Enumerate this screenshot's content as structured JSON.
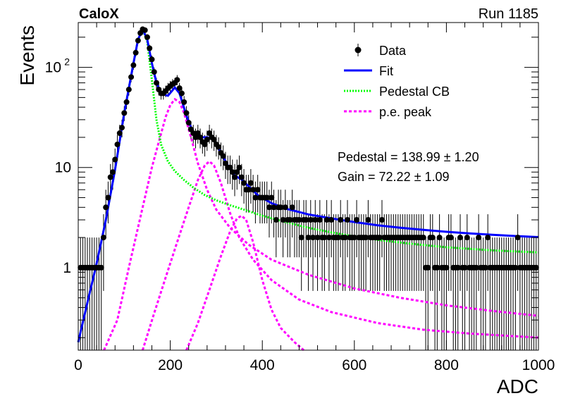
{
  "chart_data": {
    "type": "scatter",
    "title_left": "CaloX",
    "title_right": "Run 1185",
    "xlabel": "ADC",
    "ylabel": "Events",
    "xlim": [
      0,
      1000
    ],
    "ylim": [
      0.15,
      280
    ],
    "yscale": "log",
    "grid": false,
    "legend_position": "top-right",
    "x_ticks": [
      {
        "value": 0,
        "label": "0"
      },
      {
        "value": 200,
        "label": "200"
      },
      {
        "value": 400,
        "label": "400"
      },
      {
        "value": 600,
        "label": "600"
      },
      {
        "value": 800,
        "label": "800"
      },
      {
        "value": 1000,
        "label": "1000"
      }
    ],
    "y_ticks": [
      {
        "value": 1,
        "label": "1"
      },
      {
        "value": 10,
        "label": "10"
      },
      {
        "value": 100,
        "label": "10",
        "sup": "2"
      }
    ],
    "legend": [
      {
        "name": "Data",
        "style": "marker",
        "color": "#000000"
      },
      {
        "name": "Fit",
        "style": "solid",
        "color": "#0000ff"
      },
      {
        "name": "Pedestal CB",
        "style": "dotted",
        "color": "#00ff00"
      },
      {
        "name": "p.e. peak",
        "style": "dashed",
        "color": "#ff00ff"
      }
    ],
    "annotations": [
      {
        "text": "Pedestal = 138.99",
        "pm": "±",
        "err": "1.20"
      },
      {
        "text": "Gain = 72.22",
        "pm": "±",
        "err": "1.09"
      }
    ],
    "data_points": [
      [
        5,
        1
      ],
      [
        10,
        1
      ],
      [
        15,
        1
      ],
      [
        20,
        1
      ],
      [
        25,
        1
      ],
      [
        30,
        1
      ],
      [
        35,
        1
      ],
      [
        40,
        1
      ],
      [
        45,
        1
      ],
      [
        50,
        1
      ],
      [
        55,
        2
      ],
      [
        60,
        4
      ],
      [
        65,
        5
      ],
      [
        70,
        8
      ],
      [
        75,
        9
      ],
      [
        80,
        12
      ],
      [
        85,
        17
      ],
      [
        90,
        22
      ],
      [
        95,
        25
      ],
      [
        100,
        35
      ],
      [
        105,
        45
      ],
      [
        110,
        60
      ],
      [
        115,
        80
      ],
      [
        120,
        105
      ],
      [
        125,
        140
      ],
      [
        130,
        185
      ],
      [
        135,
        220
      ],
      [
        140,
        240
      ],
      [
        145,
        235
      ],
      [
        150,
        200
      ],
      [
        155,
        155
      ],
      [
        160,
        120
      ],
      [
        165,
        90
      ],
      [
        170,
        70
      ],
      [
        175,
        60
      ],
      [
        180,
        55
      ],
      [
        185,
        55
      ],
      [
        190,
        58
      ],
      [
        195,
        62
      ],
      [
        200,
        65
      ],
      [
        205,
        68
      ],
      [
        210,
        70
      ],
      [
        215,
        75
      ],
      [
        220,
        62
      ],
      [
        225,
        55
      ],
      [
        230,
        45
      ],
      [
        235,
        35
      ],
      [
        240,
        28
      ],
      [
        245,
        24
      ],
      [
        250,
        22
      ],
      [
        255,
        20
      ],
      [
        260,
        22
      ],
      [
        265,
        20
      ],
      [
        270,
        18
      ],
      [
        275,
        17
      ],
      [
        280,
        19
      ],
      [
        285,
        22
      ],
      [
        290,
        20
      ],
      [
        295,
        19
      ],
      [
        300,
        17
      ],
      [
        305,
        16
      ],
      [
        310,
        14
      ],
      [
        315,
        13
      ],
      [
        320,
        11
      ],
      [
        325,
        10
      ],
      [
        330,
        10
      ],
      [
        335,
        9
      ],
      [
        340,
        8
      ],
      [
        345,
        9
      ],
      [
        350,
        10
      ],
      [
        355,
        8
      ],
      [
        360,
        7
      ],
      [
        365,
        6
      ],
      [
        370,
        6
      ],
      [
        375,
        7
      ],
      [
        380,
        6
      ],
      [
        385,
        5
      ],
      [
        390,
        6
      ],
      [
        395,
        5
      ],
      [
        400,
        5
      ],
      [
        405,
        5
      ],
      [
        410,
        5
      ],
      [
        415,
        4
      ],
      [
        420,
        5
      ],
      [
        425,
        4
      ],
      [
        430,
        3
      ],
      [
        435,
        4
      ],
      [
        440,
        4
      ],
      [
        445,
        3
      ],
      [
        450,
        4
      ],
      [
        455,
        3
      ],
      [
        460,
        3
      ],
      [
        465,
        4
      ],
      [
        470,
        3
      ],
      [
        475,
        3
      ],
      [
        480,
        3
      ],
      [
        485,
        2
      ],
      [
        490,
        3
      ],
      [
        495,
        3
      ],
      [
        500,
        2
      ],
      [
        505,
        3
      ],
      [
        510,
        2
      ],
      [
        515,
        3
      ],
      [
        520,
        2
      ],
      [
        525,
        3
      ],
      [
        530,
        2
      ],
      [
        535,
        2
      ],
      [
        540,
        3
      ],
      [
        545,
        2
      ],
      [
        550,
        3
      ],
      [
        555,
        2
      ],
      [
        560,
        2
      ],
      [
        565,
        2
      ],
      [
        570,
        3
      ],
      [
        575,
        2
      ],
      [
        580,
        2
      ],
      [
        585,
        3
      ],
      [
        590,
        2
      ],
      [
        595,
        2
      ],
      [
        600,
        2
      ],
      [
        605,
        3
      ],
      [
        610,
        2
      ],
      [
        615,
        2
      ],
      [
        620,
        2
      ],
      [
        625,
        2
      ],
      [
        630,
        3
      ],
      [
        635,
        2
      ],
      [
        640,
        2
      ],
      [
        645,
        2
      ],
      [
        650,
        2
      ],
      [
        655,
        2
      ],
      [
        660,
        3
      ],
      [
        665,
        2
      ],
      [
        670,
        2
      ],
      [
        675,
        2
      ],
      [
        680,
        2
      ],
      [
        685,
        2
      ],
      [
        690,
        2
      ],
      [
        695,
        2
      ],
      [
        700,
        2
      ],
      [
        705,
        2
      ],
      [
        710,
        2
      ],
      [
        715,
        2
      ],
      [
        720,
        2
      ],
      [
        725,
        2
      ],
      [
        730,
        2
      ],
      [
        735,
        2
      ],
      [
        740,
        2
      ],
      [
        745,
        2
      ],
      [
        750,
        2
      ],
      [
        755,
        1
      ],
      [
        760,
        1
      ],
      [
        765,
        2
      ],
      [
        770,
        2
      ],
      [
        775,
        1
      ],
      [
        780,
        1
      ],
      [
        785,
        2
      ],
      [
        790,
        1
      ],
      [
        795,
        1
      ],
      [
        800,
        1
      ],
      [
        805,
        2
      ],
      [
        810,
        2
      ],
      [
        815,
        1
      ],
      [
        820,
        1
      ],
      [
        825,
        1
      ],
      [
        830,
        2
      ],
      [
        835,
        1
      ],
      [
        840,
        1
      ],
      [
        845,
        2
      ],
      [
        850,
        1
      ],
      [
        855,
        1
      ],
      [
        860,
        1
      ],
      [
        865,
        1
      ],
      [
        870,
        2
      ],
      [
        875,
        1
      ],
      [
        880,
        1
      ],
      [
        885,
        1
      ],
      [
        890,
        2
      ],
      [
        895,
        1
      ],
      [
        900,
        1
      ],
      [
        905,
        1
      ],
      [
        910,
        1
      ],
      [
        915,
        1
      ],
      [
        920,
        1
      ],
      [
        925,
        1
      ],
      [
        930,
        1
      ],
      [
        935,
        1
      ],
      [
        940,
        1
      ],
      [
        945,
        1
      ],
      [
        950,
        1
      ],
      [
        955,
        2
      ],
      [
        960,
        1
      ],
      [
        965,
        1
      ],
      [
        970,
        1
      ],
      [
        975,
        1
      ],
      [
        980,
        1
      ],
      [
        985,
        1
      ],
      [
        990,
        1
      ],
      [
        995,
        1
      ]
    ],
    "fit": [
      [
        0,
        0.18
      ],
      [
        20,
        0.45
      ],
      [
        40,
        1.1
      ],
      [
        60,
        3.0
      ],
      [
        80,
        9.5
      ],
      [
        100,
        35
      ],
      [
        120,
        110
      ],
      [
        130,
        190
      ],
      [
        140,
        240
      ],
      [
        150,
        190
      ],
      [
        160,
        110
      ],
      [
        170,
        70
      ],
      [
        180,
        55
      ],
      [
        195,
        52
      ],
      [
        210,
        63
      ],
      [
        220,
        55
      ],
      [
        235,
        33
      ],
      [
        250,
        22
      ],
      [
        265,
        20
      ],
      [
        280,
        20
      ],
      [
        295,
        19
      ],
      [
        310,
        14
      ],
      [
        325,
        10.5
      ],
      [
        340,
        8.3
      ],
      [
        355,
        7.6
      ],
      [
        370,
        6.5
      ],
      [
        390,
        5.3
      ],
      [
        420,
        4.4
      ],
      [
        450,
        3.9
      ],
      [
        500,
        3.4
      ],
      [
        550,
        3.1
      ],
      [
        600,
        2.85
      ],
      [
        650,
        2.65
      ],
      [
        700,
        2.5
      ],
      [
        750,
        2.38
      ],
      [
        800,
        2.28
      ],
      [
        850,
        2.2
      ],
      [
        900,
        2.13
      ],
      [
        950,
        2.07
      ],
      [
        1000,
        2.02
      ]
    ],
    "pedestal_cb": [
      [
        0,
        0.18
      ],
      [
        20,
        0.45
      ],
      [
        40,
        1.1
      ],
      [
        60,
        3.0
      ],
      [
        80,
        9.5
      ],
      [
        100,
        35
      ],
      [
        120,
        110
      ],
      [
        130,
        190
      ],
      [
        140,
        240
      ],
      [
        150,
        180
      ],
      [
        160,
        75
      ],
      [
        170,
        30
      ],
      [
        180,
        17
      ],
      [
        195,
        11.5
      ],
      [
        210,
        9.2
      ],
      [
        230,
        7.5
      ],
      [
        250,
        6.3
      ],
      [
        275,
        5.3
      ],
      [
        300,
        4.7
      ],
      [
        330,
        4.2
      ],
      [
        360,
        3.8
      ],
      [
        400,
        3.3
      ],
      [
        450,
        2.85
      ],
      [
        500,
        2.5
      ],
      [
        550,
        2.25
      ],
      [
        600,
        2.05
      ],
      [
        650,
        1.9
      ],
      [
        700,
        1.78
      ],
      [
        750,
        1.68
      ],
      [
        800,
        1.6
      ],
      [
        850,
        1.54
      ],
      [
        900,
        1.49
      ],
      [
        950,
        1.45
      ],
      [
        1000,
        1.42
      ]
    ],
    "pe_peaks": [
      [
        [
          56,
          0.15
        ],
        [
          85,
          0.3
        ],
        [
          110,
          1.0
        ],
        [
          140,
          4.0
        ],
        [
          160,
          10
        ],
        [
          175,
          18
        ],
        [
          190,
          32
        ],
        [
          200,
          42
        ],
        [
          210,
          48
        ],
        [
          220,
          45
        ],
        [
          230,
          35
        ],
        [
          245,
          20
        ],
        [
          260,
          11
        ],
        [
          280,
          6.0
        ],
        [
          300,
          3.8
        ],
        [
          330,
          2.5
        ],
        [
          370,
          1.7
        ],
        [
          420,
          1.2
        ],
        [
          500,
          0.85
        ],
        [
          600,
          0.62
        ],
        [
          700,
          0.5
        ],
        [
          800,
          0.42
        ],
        [
          900,
          0.37
        ],
        [
          1000,
          0.33
        ]
      ],
      [
        [
          140,
          0.15
        ],
        [
          165,
          0.35
        ],
        [
          190,
          0.8
        ],
        [
          215,
          1.8
        ],
        [
          240,
          4.0
        ],
        [
          260,
          7.5
        ],
        [
          275,
          10.5
        ],
        [
          285,
          11.5
        ],
        [
          295,
          10.5
        ],
        [
          310,
          7.0
        ],
        [
          330,
          3.5
        ],
        [
          350,
          2.0
        ],
        [
          380,
          1.2
        ],
        [
          420,
          0.75
        ],
        [
          480,
          0.48
        ],
        [
          550,
          0.36
        ],
        [
          650,
          0.28
        ],
        [
          750,
          0.24
        ],
        [
          850,
          0.22
        ],
        [
          1000,
          0.2
        ]
      ],
      [
        [
          235,
          0.15
        ],
        [
          260,
          0.28
        ],
        [
          285,
          0.6
        ],
        [
          310,
          1.3
        ],
        [
          330,
          2.3
        ],
        [
          345,
          3.1
        ],
        [
          355,
          3.3
        ],
        [
          365,
          3.0
        ],
        [
          380,
          1.8
        ],
        [
          400,
          0.75
        ],
        [
          420,
          0.38
        ],
        [
          440,
          0.25
        ],
        [
          470,
          0.18
        ],
        [
          490,
          0.15
        ]
      ]
    ]
  }
}
